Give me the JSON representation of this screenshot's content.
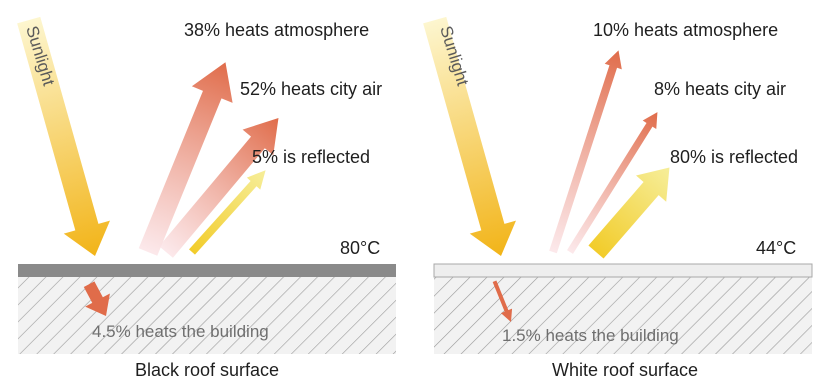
{
  "panels": [
    {
      "id": "black",
      "sunlight_label": "Sunlight",
      "atmosphere_label": "38% heats atmosphere",
      "city_air_label": "52% heats city air",
      "reflected_label": "5% is reflected",
      "temperature_label": "80°C",
      "building_label": "4.5% heats the building",
      "caption": "Black roof surface",
      "roof_color": "#8a8a8a"
    },
    {
      "id": "white",
      "sunlight_label": "Sunlight",
      "atmosphere_label": "10% heats atmosphere",
      "city_air_label": "8% heats city air",
      "reflected_label": "80% is reflected",
      "temperature_label": "44°C",
      "building_label": "1.5% heats the building",
      "caption": "White roof surface",
      "roof_color": "#eeeeee"
    }
  ],
  "colors": {
    "sun_top": "#fdf6cf",
    "sun_bottom": "#f2b418",
    "heat_arrow": "#e06c4a",
    "reflect_arrow": "#f2e55e",
    "hatch": "#9a9a9a",
    "building_fill": "#f2f2f2"
  }
}
